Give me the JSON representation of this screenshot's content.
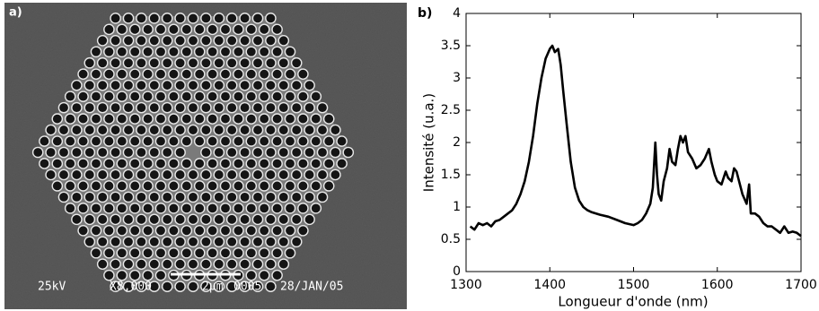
{
  "figure_a": {
    "label": "a)",
    "info": [
      "25kV",
      "X8,000",
      "2µm",
      "0005",
      "28/JAN/05"
    ]
  },
  "chart_data": {
    "type": "line",
    "panel_label": "b)",
    "xlabel": "Longueur d'onde (nm)",
    "ylabel": "Intensité (u.a.)",
    "x": [
      1305,
      1310,
      1315,
      1320,
      1325,
      1330,
      1335,
      1340,
      1345,
      1350,
      1355,
      1360,
      1365,
      1370,
      1375,
      1380,
      1385,
      1390,
      1395,
      1400,
      1403,
      1406,
      1410,
      1413,
      1416,
      1420,
      1425,
      1430,
      1435,
      1440,
      1445,
      1450,
      1460,
      1470,
      1480,
      1490,
      1500,
      1505,
      1510,
      1515,
      1520,
      1523,
      1526,
      1528,
      1530,
      1533,
      1536,
      1540,
      1543,
      1546,
      1550,
      1553,
      1556,
      1559,
      1562,
      1565,
      1570,
      1575,
      1580,
      1585,
      1590,
      1593,
      1597,
      1600,
      1605,
      1610,
      1613,
      1617,
      1620,
      1623,
      1626,
      1630,
      1635,
      1638,
      1640,
      1645,
      1650,
      1655,
      1660,
      1665,
      1670,
      1675,
      1680,
      1685,
      1690,
      1695,
      1700
    ],
    "series": [
      {
        "color": "#000000",
        "values": [
          0.7,
          0.65,
          0.75,
          0.72,
          0.75,
          0.7,
          0.78,
          0.8,
          0.85,
          0.9,
          0.95,
          1.05,
          1.2,
          1.4,
          1.7,
          2.1,
          2.6,
          3.0,
          3.3,
          3.45,
          3.5,
          3.4,
          3.45,
          3.2,
          2.8,
          2.3,
          1.7,
          1.3,
          1.1,
          1.0,
          0.95,
          0.92,
          0.88,
          0.85,
          0.8,
          0.75,
          0.72,
          0.75,
          0.8,
          0.9,
          1.05,
          1.3,
          2.0,
          1.5,
          1.2,
          1.1,
          1.4,
          1.6,
          1.9,
          1.7,
          1.65,
          1.9,
          2.1,
          2.0,
          2.1,
          1.85,
          1.75,
          1.6,
          1.65,
          1.75,
          1.9,
          1.7,
          1.5,
          1.4,
          1.35,
          1.55,
          1.45,
          1.4,
          1.6,
          1.55,
          1.4,
          1.2,
          1.05,
          1.35,
          0.9,
          0.9,
          0.85,
          0.75,
          0.7,
          0.7,
          0.65,
          0.6,
          0.7,
          0.6,
          0.62,
          0.6,
          0.55
        ]
      }
    ],
    "xlim": [
      1300,
      1700
    ],
    "xticks": [
      1300,
      1400,
      1500,
      1600,
      1700
    ],
    "ylim": [
      0,
      4
    ],
    "yticks": [
      0,
      0.5,
      1,
      1.5,
      2,
      2.5,
      3,
      3.5,
      4
    ]
  }
}
